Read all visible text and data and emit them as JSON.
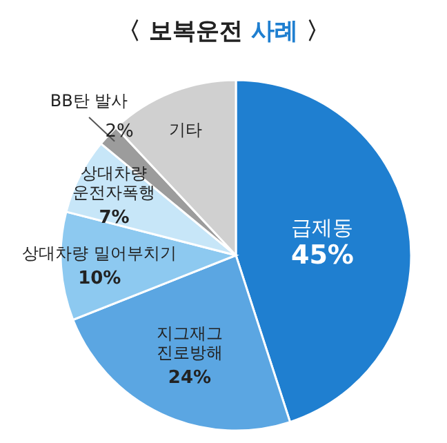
{
  "chart_data": {
    "type": "pie",
    "title": "〈 보복운전 사례 〉",
    "categories": [
      "급제동",
      "지그재그\n진로방해",
      "상대차량 밀어부치기",
      "상대차량\n운전자폭행",
      "BB탄 발사",
      "기타"
    ],
    "values": [
      45,
      24,
      10,
      7,
      2,
      12
    ],
    "colors": [
      "#1f7fd0",
      "#5ba6e2",
      "#8dc9f0",
      "#c7e6f8",
      "#9c9c9c",
      "#d0d0d0"
    ],
    "value_labels": [
      "45%",
      "24%",
      "10%",
      "7%",
      "2%",
      null
    ]
  }
}
